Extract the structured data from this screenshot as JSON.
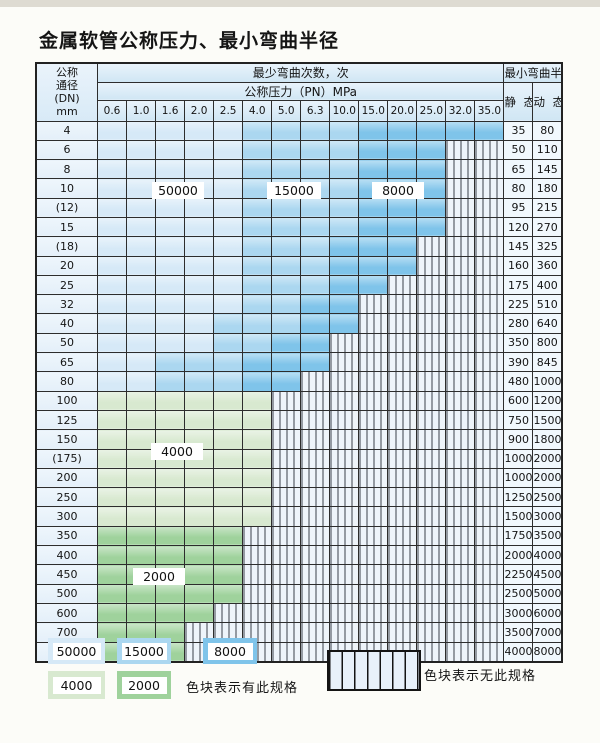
{
  "title": "金属软管公称压力、最小弯曲半径",
  "colors": {
    "blue_50000": "#d6e9f7",
    "blue_15000": "#abd7f0",
    "blue_8000": "#7fc4ea",
    "green_4000": "#d8e9d0",
    "green_2000": "#9fd29c",
    "stripe_bg": "#eef4fa"
  },
  "table": {
    "corner_lines": [
      "公称",
      "通径",
      "(DN)",
      "mm"
    ],
    "bend_cycles_header": "最少弯曲次数，次",
    "pressure_header": "公称压力（PN）MPa",
    "radius_header": "最小弯曲半径",
    "static_header": "静 态",
    "dynamic_header": "动 态",
    "pressure_columns": [
      "0.6",
      "1.0",
      "1.6",
      "2.0",
      "2.5",
      "4.0",
      "5.0",
      "6.3",
      "10.0",
      "15.0",
      "20.0",
      "25.0",
      "32.0",
      "35.0"
    ],
    "rows": [
      {
        "dn": "4",
        "static": "35",
        "dynamic": "80",
        "colored_until": 13,
        "shade": "blue",
        "mid_start": 5,
        "dark_start": 9
      },
      {
        "dn": "6",
        "static": "50",
        "dynamic": "110",
        "colored_until": 11,
        "shade": "blue",
        "mid_start": 5,
        "dark_start": 9
      },
      {
        "dn": "8",
        "static": "65",
        "dynamic": "145",
        "colored_until": 11,
        "shade": "blue",
        "mid_start": 5,
        "dark_start": 9
      },
      {
        "dn": "10",
        "static": "80",
        "dynamic": "180",
        "colored_until": 11,
        "shade": "blue",
        "mid_start": 5,
        "dark_start": 9
      },
      {
        "dn": "(12)",
        "static": "95",
        "dynamic": "215",
        "colored_until": 11,
        "shade": "blue",
        "mid_start": 5,
        "dark_start": 9
      },
      {
        "dn": "15",
        "static": "120",
        "dynamic": "270",
        "colored_until": 11,
        "shade": "blue",
        "mid_start": 5,
        "dark_start": 9
      },
      {
        "dn": "(18)",
        "static": "145",
        "dynamic": "325",
        "colored_until": 10,
        "shade": "blue",
        "mid_start": 5,
        "dark_start": 8
      },
      {
        "dn": "20",
        "static": "160",
        "dynamic": "360",
        "colored_until": 10,
        "shade": "blue",
        "mid_start": 5,
        "dark_start": 8
      },
      {
        "dn": "25",
        "static": "175",
        "dynamic": "400",
        "colored_until": 9,
        "shade": "blue",
        "mid_start": 5,
        "dark_start": 8
      },
      {
        "dn": "32",
        "static": "225",
        "dynamic": "510",
        "colored_until": 8,
        "shade": "blue",
        "mid_start": 5,
        "dark_start": 7
      },
      {
        "dn": "40",
        "static": "280",
        "dynamic": "640",
        "colored_until": 8,
        "shade": "blue",
        "mid_start": 4,
        "dark_start": 7
      },
      {
        "dn": "50",
        "static": "350",
        "dynamic": "800",
        "colored_until": 7,
        "shade": "blue",
        "mid_start": 4,
        "dark_start": 6
      },
      {
        "dn": "65",
        "static": "390",
        "dynamic": "845",
        "colored_until": 7,
        "shade": "blue",
        "mid_start": 2,
        "dark_start": 5
      },
      {
        "dn": "80",
        "static": "480",
        "dynamic": "1000",
        "colored_until": 6,
        "shade": "blue",
        "mid_start": 2,
        "dark_start": 5
      },
      {
        "dn": "100",
        "static": "600",
        "dynamic": "1200",
        "colored_until": 5,
        "shade": "green_4000"
      },
      {
        "dn": "125",
        "static": "750",
        "dynamic": "1500",
        "colored_until": 5,
        "shade": "green_4000"
      },
      {
        "dn": "150",
        "static": "900",
        "dynamic": "1800",
        "colored_until": 5,
        "shade": "green_4000"
      },
      {
        "dn": "(175)",
        "static": "1000",
        "dynamic": "2000",
        "colored_until": 5,
        "shade": "green_4000"
      },
      {
        "dn": "200",
        "static": "1000",
        "dynamic": "2000",
        "colored_until": 5,
        "shade": "green_4000"
      },
      {
        "dn": "250",
        "static": "1250",
        "dynamic": "2500",
        "colored_until": 5,
        "shade": "green_4000"
      },
      {
        "dn": "300",
        "static": "1500",
        "dynamic": "3000",
        "colored_until": 5,
        "shade": "green_4000"
      },
      {
        "dn": "350",
        "static": "1750",
        "dynamic": "3500",
        "colored_until": 4,
        "shade": "green_2000"
      },
      {
        "dn": "400",
        "static": "2000",
        "dynamic": "4000",
        "colored_until": 4,
        "shade": "green_2000"
      },
      {
        "dn": "450",
        "static": "2250",
        "dynamic": "4500",
        "colored_until": 4,
        "shade": "green_2000"
      },
      {
        "dn": "500",
        "static": "2500",
        "dynamic": "5000",
        "colored_until": 4,
        "shade": "green_2000"
      },
      {
        "dn": "600",
        "static": "3000",
        "dynamic": "6000",
        "colored_until": 3,
        "shade": "green_2000"
      },
      {
        "dn": "700",
        "static": "3500",
        "dynamic": "7000",
        "colored_until": 2,
        "shade": "green_2000"
      },
      {
        "dn": "800",
        "static": "4000",
        "dynamic": "8000",
        "colored_until": 2,
        "shade": "green_2000"
      }
    ]
  },
  "region_labels": [
    "50000",
    "15000",
    "8000",
    "4000",
    "2000"
  ],
  "legend": {
    "has_spec_items": [
      {
        "value": "50000",
        "color_key": "blue_50000"
      },
      {
        "value": "15000",
        "color_key": "blue_15000"
      },
      {
        "value": "8000",
        "color_key": "blue_8000"
      },
      {
        "value": "4000",
        "color_key": "green_4000"
      },
      {
        "value": "2000",
        "color_key": "green_2000"
      }
    ],
    "has_spec_note": "色块表示有此规格",
    "no_spec_note": "色块表示无此规格"
  }
}
